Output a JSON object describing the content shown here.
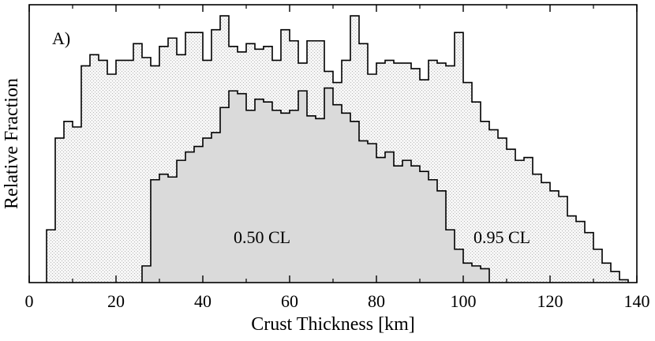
{
  "chart_data": {
    "type": "histogram",
    "panel_label": "A)",
    "xlabel": "Crust Thickness [km]",
    "ylabel": "Relative Fraction",
    "xlim": [
      0,
      140
    ],
    "ylim": [
      0,
      1.0
    ],
    "x_ticks": [
      0,
      20,
      40,
      60,
      80,
      100,
      120,
      140
    ],
    "x_tick_labels": [
      "0",
      "20",
      "40",
      "60",
      "80",
      "100",
      "120",
      "140"
    ],
    "y_ticks_labeled": false,
    "bin_width": 2,
    "series": [
      {
        "name": "0.95 CL",
        "label": "0.95 CL",
        "fill": "dotted-light",
        "x_start": 4,
        "values": [
          0.19,
          0.52,
          0.58,
          0.56,
          0.78,
          0.82,
          0.8,
          0.75,
          0.8,
          0.8,
          0.86,
          0.81,
          0.78,
          0.85,
          0.88,
          0.82,
          0.9,
          0.9,
          0.8,
          0.91,
          0.96,
          0.85,
          0.83,
          0.86,
          0.84,
          0.85,
          0.8,
          0.91,
          0.87,
          0.79,
          0.87,
          0.87,
          0.76,
          0.72,
          0.8,
          0.96,
          0.86,
          0.75,
          0.79,
          0.8,
          0.79,
          0.79,
          0.77,
          0.73,
          0.8,
          0.79,
          0.78,
          0.9,
          0.72,
          0.65,
          0.58,
          0.55,
          0.52,
          0.48,
          0.44,
          0.45,
          0.39,
          0.36,
          0.33,
          0.31,
          0.24,
          0.22,
          0.18,
          0.12,
          0.07,
          0.04,
          0.01
        ]
      },
      {
        "name": "0.50 CL",
        "label": "0.50 CL",
        "fill": "solid-gray",
        "x_start": 26,
        "values": [
          0.06,
          0.37,
          0.39,
          0.38,
          0.44,
          0.47,
          0.49,
          0.52,
          0.54,
          0.63,
          0.69,
          0.68,
          0.62,
          0.66,
          0.65,
          0.62,
          0.61,
          0.62,
          0.69,
          0.6,
          0.59,
          0.7,
          0.64,
          0.61,
          0.58,
          0.51,
          0.5,
          0.45,
          0.47,
          0.42,
          0.44,
          0.42,
          0.4,
          0.37,
          0.33,
          0.19,
          0.12,
          0.07,
          0.06,
          0.05
        ]
      }
    ],
    "annotations": [
      "0.50 CL",
      "0.95 CL"
    ]
  }
}
